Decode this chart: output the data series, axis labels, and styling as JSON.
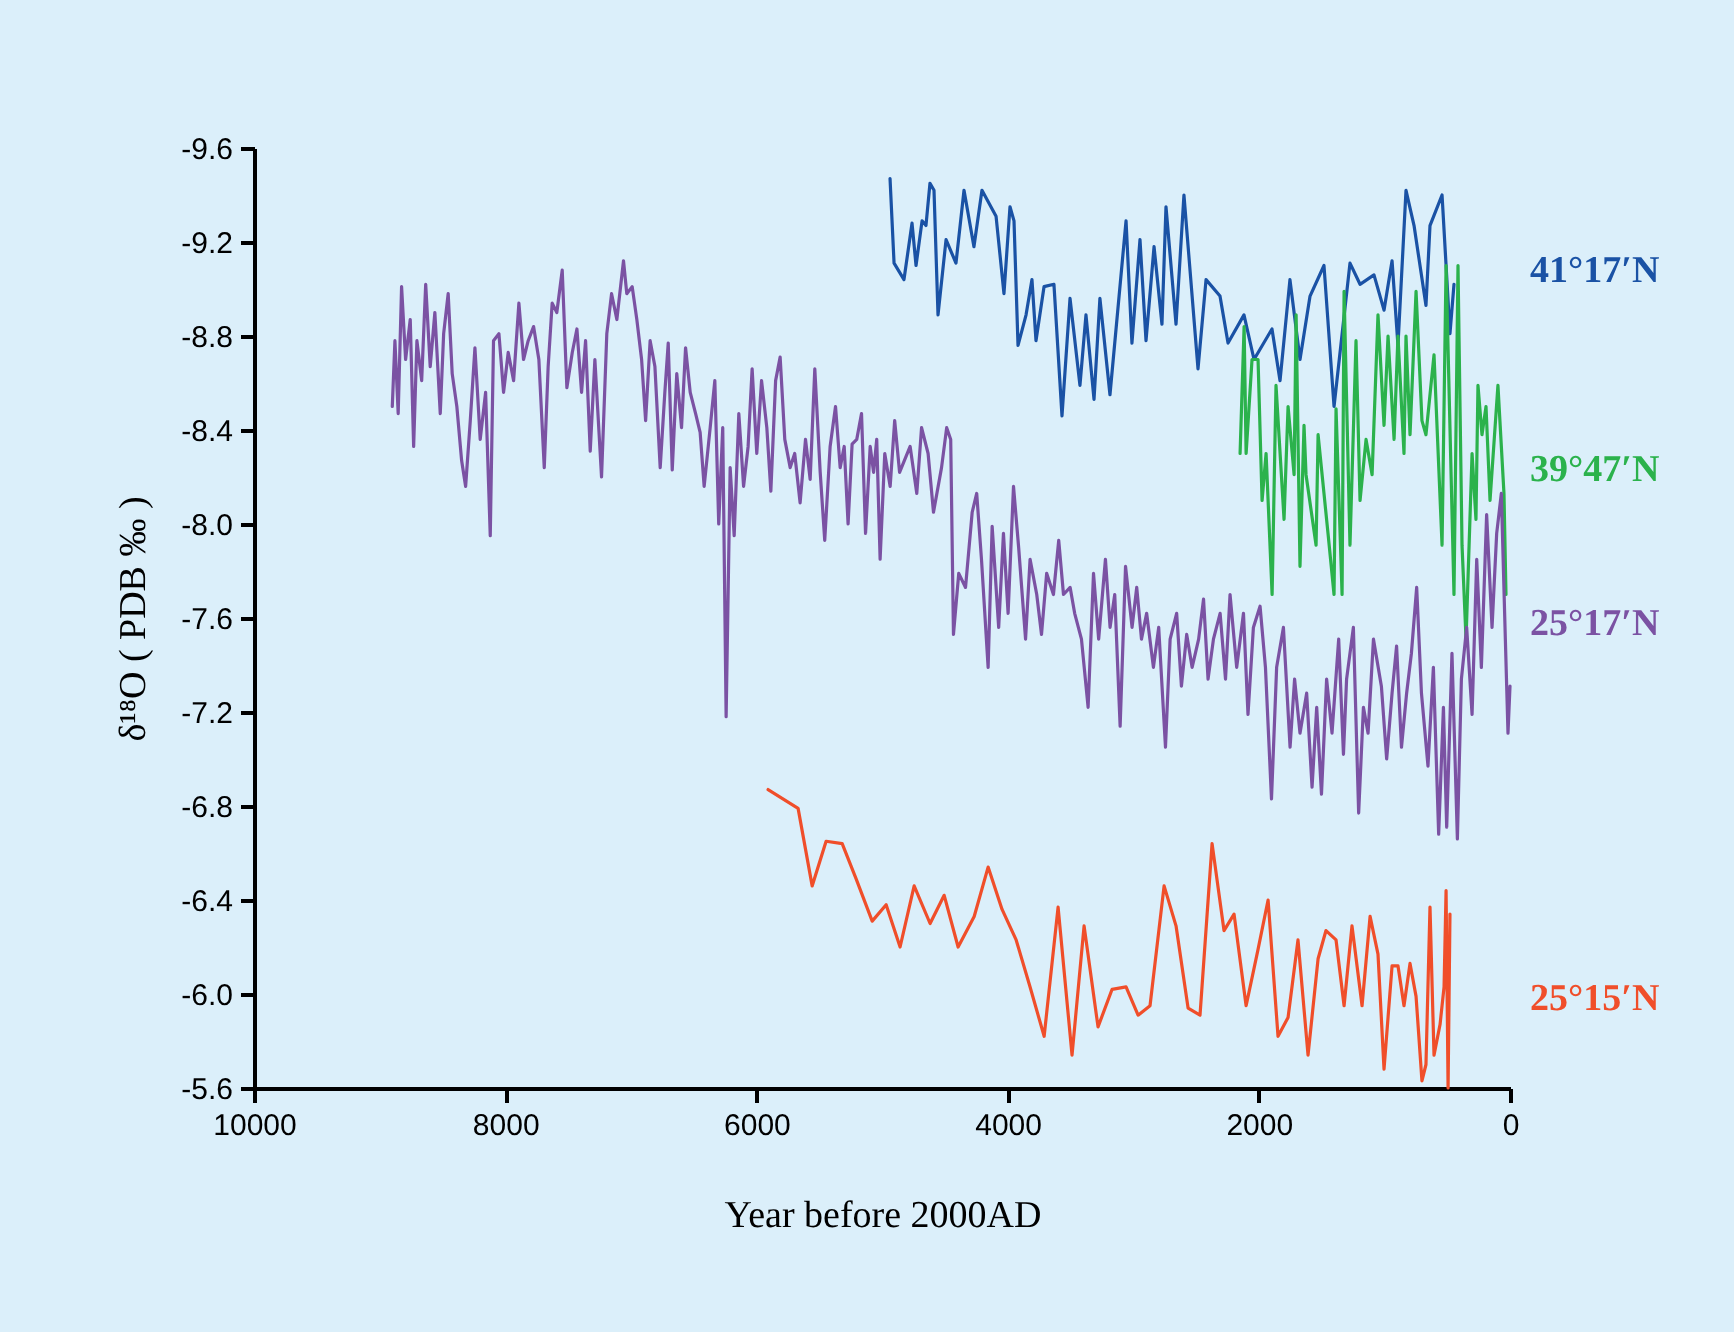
{
  "chart_data": {
    "type": "line",
    "xlabel": "Year before 2000AD",
    "ylabel": "δ¹⁸O ( PDB ‰ )",
    "xlim": [
      10000,
      0
    ],
    "xticks": [
      10000,
      8000,
      6000,
      4000,
      2000,
      0
    ],
    "ylim": [
      -5.6,
      -9.6
    ],
    "yticks": [
      -9.6,
      -9.2,
      -8.8,
      -8.4,
      {
        "value": -8,
        "label": "-8.0"
      },
      -7.6,
      -7.2,
      -6.8,
      -6.4,
      {
        "value": -6,
        "label": "-6.0"
      },
      -5.6
    ],
    "grid": false,
    "series": [
      {
        "name": "41°17′N",
        "color": "#1a52a5",
        "x": [
          4936,
          4904,
          4825,
          4761,
          4729,
          4681,
          4650,
          4618,
          4586,
          4554,
          4490,
          4411,
          4347,
          4268,
          4204,
          4092,
          4029,
          3981,
          3949,
          3917,
          3853,
          3806,
          3774,
          3710,
          3631,
          3567,
          3503,
          3424,
          3376,
          3312,
          3265,
          3185,
          3057,
          3010,
          2946,
          2898,
          2834,
          2771,
          2739,
          2659,
          2596,
          2484,
          2420,
          2309,
          2245,
          2118,
          2038,
          1895,
          1831,
          1752,
          1672,
          1592,
          1481,
          1401,
          1274,
          1194,
          1083,
          1003,
          939,
          892,
          828,
          764,
          669,
          637,
          541,
          478,
          446
        ],
        "values": [
          -9.47,
          -9.11,
          -9.04,
          -9.28,
          -9.1,
          -9.29,
          -9.27,
          -9.45,
          -9.42,
          -8.89,
          -9.21,
          -9.11,
          -9.42,
          -9.18,
          -9.42,
          -9.31,
          -8.98,
          -9.35,
          -9.29,
          -8.76,
          -8.89,
          -9.04,
          -8.78,
          -9.01,
          -9.02,
          -8.46,
          -8.96,
          -8.59,
          -8.89,
          -8.53,
          -8.96,
          -8.55,
          -9.29,
          -8.77,
          -9.21,
          -8.78,
          -9.18,
          -8.85,
          -9.35,
          -8.85,
          -9.4,
          -8.66,
          -9.04,
          -8.97,
          -8.77,
          -8.89,
          -8.7,
          -8.83,
          -8.61,
          -9.04,
          -8.7,
          -8.97,
          -9.1,
          -8.5,
          -9.11,
          -9.02,
          -9.06,
          -8.91,
          -9.12,
          -8.76,
          -9.42,
          -9.27,
          -8.93,
          -9.27,
          -9.4,
          -8.81,
          -9.02
        ]
      },
      {
        "name": "39°47′N",
        "color": "#2bb24c",
        "x": [
          2149,
          2117,
          2101,
          2054,
          2006,
          1974,
          1942,
          1894,
          1863,
          1799,
          1767,
          1719,
          1703,
          1672,
          1640,
          1624,
          1544,
          1528,
          1481,
          1449,
          1401,
          1385,
          1337,
          1321,
          1274,
          1226,
          1194,
          1146,
          1098,
          1051,
          1003,
          971,
          923,
          892,
          844,
          828,
          796,
          748,
          701,
          669,
          605,
          541,
          509,
          446,
          414,
          382,
          350,
          302,
          271,
          255,
          223,
          191,
          159,
          96,
          48,
          32
        ],
        "values": [
          -8.3,
          -8.84,
          -8.3,
          -8.7,
          -8.7,
          -8.1,
          -8.3,
          -7.7,
          -8.59,
          -8.02,
          -8.5,
          -8.21,
          -8.89,
          -7.82,
          -8.42,
          -8.21,
          -7.91,
          -8.38,
          -8.13,
          -7.96,
          -7.7,
          -8.49,
          -7.7,
          -8.99,
          -7.91,
          -8.78,
          -8.1,
          -8.36,
          -8.21,
          -8.89,
          -8.42,
          -8.8,
          -8.36,
          -8.8,
          -8.3,
          -8.8,
          -8.38,
          -8.99,
          -8.44,
          -8.38,
          -8.72,
          -7.91,
          -9.1,
          -7.7,
          -9.1,
          -7.91,
          -7.51,
          -8.3,
          -8.02,
          -8.59,
          -8.38,
          -8.5,
          -8.1,
          -8.59,
          -8.13,
          -7.7
        ]
      },
      {
        "name": "25°17′N",
        "color": "#7b52a3",
        "x": [
          8899,
          8878,
          8852,
          8825,
          8793,
          8756,
          8729,
          8703,
          8665,
          8633,
          8597,
          8560,
          8517,
          8490,
          8454,
          8422,
          8385,
          8347,
          8315,
          8278,
          8241,
          8199,
          8156,
          8119,
          8093,
          8050,
          8013,
          7976,
          7933,
          7891,
          7854,
          7817,
          7774,
          7732,
          7689,
          7658,
          7626,
          7589,
          7546,
          7509,
          7466,
          7429,
          7392,
          7360,
          7323,
          7286,
          7233,
          7191,
          7153,
          7111,
          7058,
          7032,
          6989,
          6952,
          6914,
          6882,
          6846,
          6808,
          6766,
          6729,
          6702,
          6670,
          6634,
          6596,
          6564,
          6527,
          6484,
          6448,
          6416,
          6368,
          6331,
          6300,
          6268,
          6241,
          6209,
          6177,
          6140,
          6102,
          6066,
          6034,
          5997,
          5959,
          5917,
          5885,
          5847,
          5811,
          5774,
          5731,
          5695,
          5652,
          5609,
          5572,
          5535,
          5492,
          5456,
          5413,
          5370,
          5333,
          5301,
          5270,
          5238,
          5201,
          5163,
          5131,
          5094,
          5067,
          5042,
          5015,
          4978,
          4935,
          4899,
          4860,
          4776,
          4723,
          4685,
          4633,
          4590,
          4526,
          4485,
          4453,
          4431,
          4389,
          4335,
          4282,
          4246,
          4208,
          4155,
          4123,
          4071,
          4033,
          3996,
          3953,
          3912,
          3857,
          3821,
          3768,
          3730,
          3689,
          3635,
          3593,
          3555,
          3502,
          3466,
          3412,
          3359,
          3316,
          3275,
          3221,
          3184,
          3147,
          3104,
          3061,
          3009,
          2972,
          2934,
          2893,
          2839,
          2797,
          2743,
          2706,
          2654,
          2616,
          2574,
          2531,
          2479,
          2440,
          2404,
          2361,
          2308,
          2265,
          2229,
          2176,
          2122,
          2086,
          2043,
          1990,
          1947,
          1899,
          1858,
          1804,
          1751,
          1715,
          1672,
          1619,
          1576,
          1539,
          1501,
          1460,
          1417,
          1364,
          1326,
          1301,
          1247,
          1205,
          1167,
          1130,
          1087,
          1024,
          982,
          939,
          903,
          864,
          823,
          785,
          743,
          705,
          653,
          610,
          568,
          530,
          504,
          462,
          419,
          387,
          345,
          302,
          265,
          228,
          186,
          143,
          106,
          69,
          37,
          16,
          0
        ],
        "values": [
          -8.5,
          -8.78,
          -8.47,
          -9.01,
          -8.7,
          -8.87,
          -8.33,
          -8.78,
          -8.61,
          -9.02,
          -8.67,
          -8.9,
          -8.47,
          -8.81,
          -8.98,
          -8.64,
          -8.5,
          -8.27,
          -8.16,
          -8.44,
          -8.75,
          -8.36,
          -8.56,
          -7.95,
          -8.78,
          -8.81,
          -8.56,
          -8.73,
          -8.61,
          -8.94,
          -8.7,
          -8.78,
          -8.84,
          -8.7,
          -8.24,
          -8.67,
          -8.94,
          -8.9,
          -9.08,
          -8.58,
          -8.73,
          -8.83,
          -8.56,
          -8.78,
          -8.31,
          -8.7,
          -8.2,
          -8.81,
          -8.98,
          -8.87,
          -9.12,
          -8.98,
          -9.01,
          -8.87,
          -8.7,
          -8.44,
          -8.78,
          -8.67,
          -8.24,
          -8.56,
          -8.77,
          -8.23,
          -8.64,
          -8.41,
          -8.75,
          -8.56,
          -8.47,
          -8.39,
          -8.16,
          -8.41,
          -8.61,
          -8.0,
          -8.41,
          -7.18,
          -8.24,
          -7.95,
          -8.47,
          -8.16,
          -8.33,
          -8.66,
          -8.3,
          -8.61,
          -8.41,
          -8.14,
          -8.61,
          -8.71,
          -8.36,
          -8.24,
          -8.3,
          -8.09,
          -8.36,
          -8.19,
          -8.66,
          -8.22,
          -7.93,
          -8.33,
          -8.5,
          -8.24,
          -8.33,
          -8.0,
          -8.34,
          -8.36,
          -8.47,
          -7.96,
          -8.33,
          -8.22,
          -8.36,
          -7.85,
          -8.3,
          -8.16,
          -8.44,
          -8.22,
          -8.33,
          -8.13,
          -8.41,
          -8.3,
          -8.05,
          -8.24,
          -8.41,
          -8.36,
          -7.53,
          -7.79,
          -7.73,
          -8.05,
          -8.13,
          -7.85,
          -7.39,
          -7.99,
          -7.56,
          -7.96,
          -7.62,
          -8.16,
          -7.9,
          -7.51,
          -7.85,
          -7.7,
          -7.53,
          -7.79,
          -7.7,
          -7.93,
          -7.7,
          -7.73,
          -7.62,
          -7.51,
          -7.22,
          -7.79,
          -7.51,
          -7.85,
          -7.56,
          -7.7,
          -7.14,
          -7.82,
          -7.56,
          -7.73,
          -7.51,
          -7.62,
          -7.39,
          -7.56,
          -7.05,
          -7.51,
          -7.62,
          -7.31,
          -7.53,
          -7.39,
          -7.51,
          -7.68,
          -7.34,
          -7.51,
          -7.62,
          -7.34,
          -7.7,
          -7.39,
          -7.62,
          -7.19,
          -7.56,
          -7.65,
          -7.39,
          -6.83,
          -7.39,
          -7.56,
          -7.05,
          -7.34,
          -7.11,
          -7.28,
          -6.88,
          -7.22,
          -6.85,
          -7.34,
          -7.11,
          -7.51,
          -7.02,
          -7.34,
          -7.56,
          -6.77,
          -7.22,
          -7.11,
          -7.51,
          -7.31,
          -7.0,
          -7.28,
          -7.48,
          -7.05,
          -7.28,
          -7.45,
          -7.73,
          -7.28,
          -6.97,
          -7.39,
          -6.68,
          -7.22,
          -6.71,
          -7.45,
          -6.66,
          -7.34,
          -7.56,
          -7.19,
          -7.85,
          -7.39,
          -8.04,
          -7.56,
          -7.96,
          -8.13,
          -7.51,
          -7.11,
          -7.31
        ]
      },
      {
        "name": "25°15′N",
        "color": "#f04e2a",
        "x": [
          5907,
          5668,
          5556,
          5445,
          5317,
          5206,
          5078,
          4967,
          4856,
          4744,
          4617,
          4505,
          4394,
          4266,
          4155,
          4044,
          3932,
          3821,
          3709,
          3598,
          3487,
          3391,
          3280,
          3168,
          3057,
          2961,
          2866,
          2754,
          2659,
          2563,
          2468,
          2372,
          2277,
          2197,
          2101,
          2006,
          1926,
          1847,
          1767,
          1688,
          1608,
          1528,
          1465,
          1385,
          1321,
          1258,
          1178,
          1114,
          1051,
          1003,
          939,
          892,
          844,
          796,
          748,
          701,
          669,
          637,
          605,
          557,
          525,
          509,
          493,
          478
        ],
        "values": [
          -6.87,
          -6.79,
          -6.46,
          -6.65,
          -6.64,
          -6.49,
          -6.31,
          -6.38,
          -6.2,
          -6.46,
          -6.3,
          -6.42,
          -6.2,
          -6.33,
          -6.54,
          -6.36,
          -6.23,
          -6.03,
          -5.82,
          -6.37,
          -5.74,
          -6.29,
          -5.86,
          -6.02,
          -6.03,
          -5.91,
          -5.95,
          -6.46,
          -6.29,
          -5.94,
          -5.91,
          -6.64,
          -6.27,
          -6.34,
          -5.95,
          -6.19,
          -6.4,
          -5.82,
          -5.9,
          -6.23,
          -5.74,
          -6.15,
          -6.27,
          -6.23,
          -5.95,
          -6.29,
          -5.95,
          -6.33,
          -6.17,
          -5.68,
          -6.12,
          -6.12,
          -5.95,
          -6.13,
          -5.99,
          -5.63,
          -5.7,
          -6.37,
          -5.74,
          -5.87,
          -6.03,
          -6.44,
          -5.6,
          -6.34
        ]
      }
    ]
  }
}
